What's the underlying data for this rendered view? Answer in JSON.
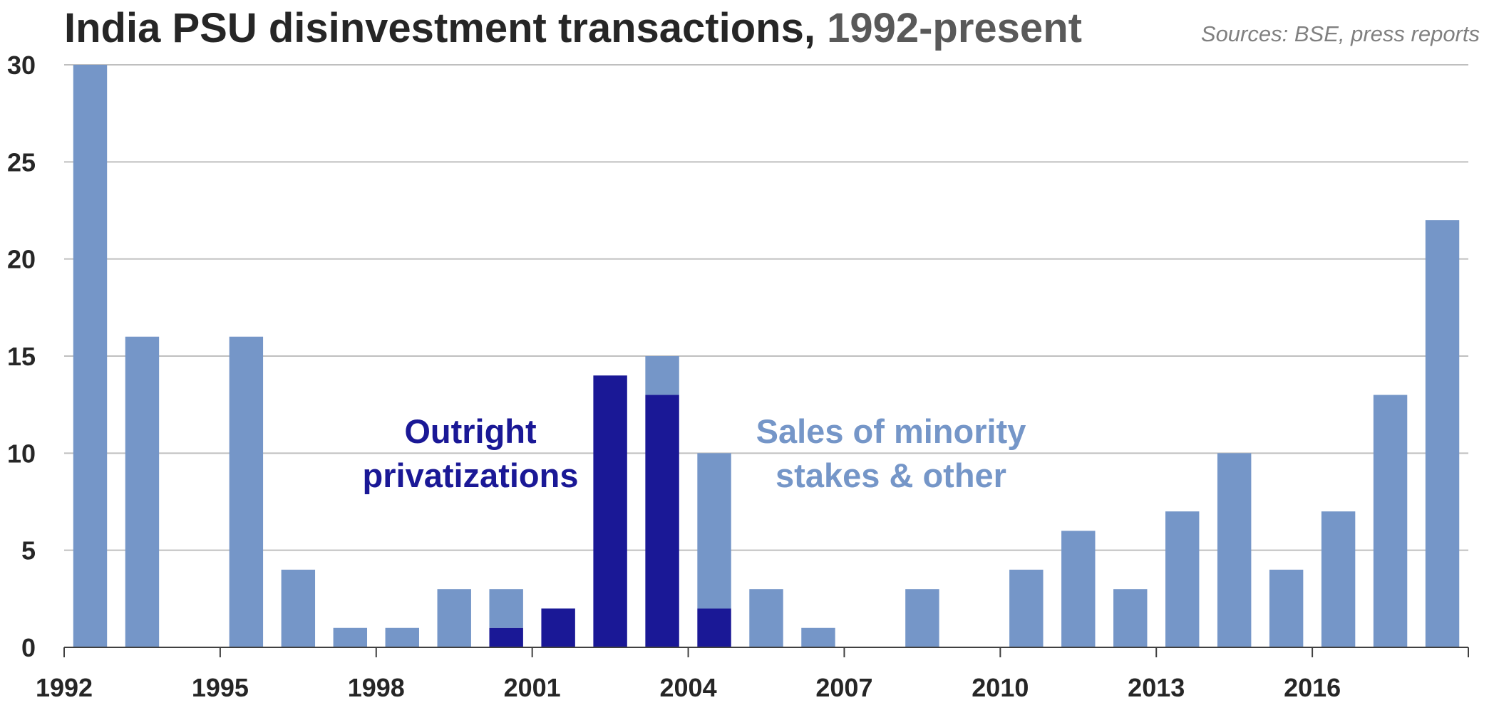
{
  "title": {
    "main": "India PSU disinvestment transactions,",
    "sub": "1992-present"
  },
  "source": "Sources: BSE, press reports",
  "annotations": {
    "privatizations": [
      "Outright",
      "privatizations"
    ],
    "minority": [
      "Sales of minority",
      "stakes & other"
    ]
  },
  "colors": {
    "privatizations": "#1A1896",
    "minority": "#7596C8",
    "grid": "#BFBFBF",
    "axis": "#404040"
  },
  "chart_data": {
    "type": "bar",
    "stacked": true,
    "x": [
      1992,
      1993,
      1994,
      1995,
      1996,
      1997,
      1998,
      1999,
      2000,
      2001,
      2002,
      2003,
      2004,
      2005,
      2006,
      2007,
      2008,
      2009,
      2010,
      2011,
      2012,
      2013,
      2014,
      2015,
      2016,
      2017,
      2018
    ],
    "x_tick_labels": [
      "1992",
      "1995",
      "1998",
      "2001",
      "2004",
      "2007",
      "2010",
      "2013",
      "2016"
    ],
    "x_tick_years": [
      1992,
      1995,
      1998,
      2001,
      2004,
      2007,
      2010,
      2013,
      2016
    ],
    "y_ticks": [
      0,
      5,
      10,
      15,
      20,
      25,
      30
    ],
    "ylim": [
      0,
      30
    ],
    "grid": true,
    "series": [
      {
        "name": "Outright privatizations",
        "values": [
          0,
          0,
          0,
          0,
          0,
          0,
          0,
          0,
          1,
          2,
          14,
          13,
          2,
          0,
          0,
          0,
          0,
          0,
          0,
          0,
          0,
          0,
          0,
          0,
          0,
          0,
          0
        ]
      },
      {
        "name": "Sales of minority stakes & other",
        "values": [
          30,
          16,
          0,
          16,
          4,
          1,
          1,
          3,
          2,
          0,
          0,
          2,
          8,
          3,
          1,
          0,
          3,
          0,
          4,
          6,
          3,
          7,
          10,
          4,
          7,
          13,
          22
        ]
      }
    ]
  }
}
